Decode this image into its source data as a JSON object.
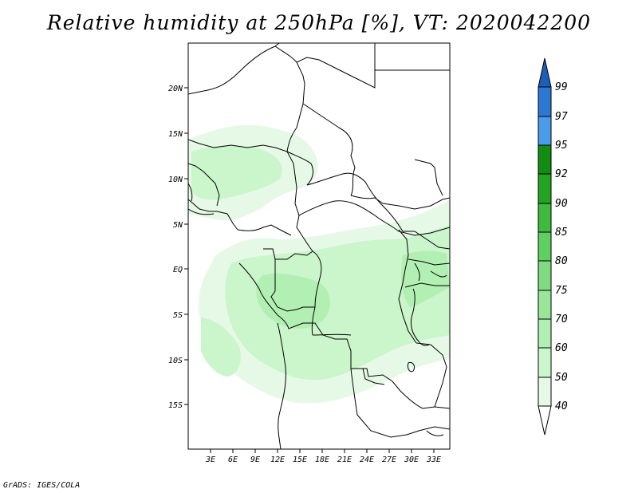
{
  "title": "Relative humidity at 250hPa [%], VT: 2020042200",
  "credit": "GrADS: IGES/COLA",
  "map": {
    "lat_labels": [
      "20N",
      "15N",
      "10N",
      "5N",
      "EQ",
      "5S",
      "10S",
      "15S"
    ],
    "lon_labels": [
      "3E",
      "6E",
      "9E",
      "12E",
      "15E",
      "18E",
      "21E",
      "24E",
      "27E",
      "30E",
      "33E"
    ]
  },
  "colorbar": {
    "labels": [
      "40",
      "50",
      "60",
      "70",
      "75",
      "80",
      "85",
      "90",
      "92",
      "95",
      "97",
      "99"
    ],
    "colors": [
      "#ffffff",
      "#e6f9e6",
      "#cbf5cb",
      "#b2efb2",
      "#99e699",
      "#7fdb7f",
      "#5fcf5f",
      "#3fb93f",
      "#22a322",
      "#128c12",
      "#4a9be8",
      "#2d78d2",
      "#1c5fb8"
    ]
  }
}
